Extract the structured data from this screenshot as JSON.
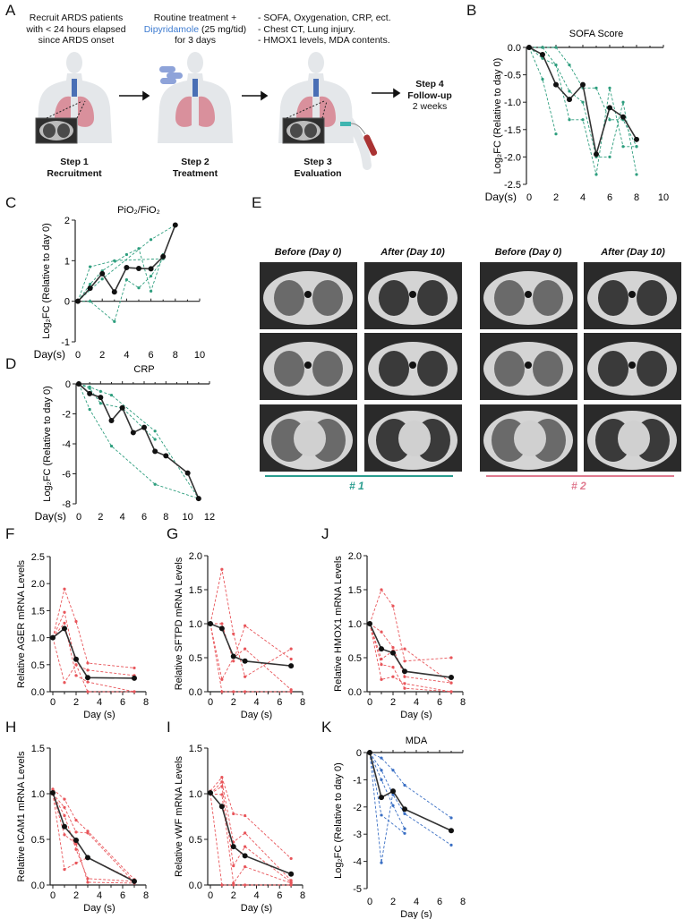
{
  "panel_labels": {
    "A": "A",
    "B": "B",
    "C": "C",
    "D": "D",
    "E": "E",
    "F": "F",
    "G": "G",
    "H": "H",
    "I": "I",
    "J": "J",
    "K": "K"
  },
  "panel_a": {
    "step1_desc": [
      "Recruit ARDS patients",
      "with < 24 hours elapsed",
      "since ARDS onset"
    ],
    "step2_desc_line1": "Routine treatment +",
    "step2_drug": "Dipyridamole",
    "step2_dose": " (25 mg/tid)",
    "step2_desc_line3": "for 3 days",
    "step3_desc": [
      "- SOFA, Oxygenation, CRP, ect.",
      "- Chest CT, Lung injury.",
      "- HMOX1 levels, MDA contents."
    ],
    "step1": {
      "title": "Step 1",
      "name": "Recruitment"
    },
    "step2": {
      "title": "Step 2",
      "name": "Treatment"
    },
    "step3": {
      "title": "Step 3",
      "name": "Evaluation"
    },
    "step4": {
      "title": "Step 4",
      "name": "Follow-up",
      "duration": "2 weeks"
    },
    "drug_color": "#3d7bd0"
  },
  "panel_e": {
    "headers": [
      "Before (Day 0)",
      "After (Day 10)",
      "Before (Day 0)",
      "After (Day 10)"
    ],
    "groups": [
      {
        "label": "# 1",
        "color": "#2a9d8f"
      },
      {
        "label": "# 2",
        "color": "#e07a8f"
      }
    ]
  },
  "chart_data": [
    {
      "id": "B",
      "type": "line",
      "title": "SOFA Score",
      "xlabel": "Day(s)",
      "ylabel": "Log₂FC (Relative to day 0)",
      "xlim": [
        0,
        10
      ],
      "ylim": [
        -2.5,
        0
      ],
      "xticks": [
        "0",
        "2",
        "4",
        "6",
        "8",
        "10"
      ],
      "yticks": [
        "0.0",
        "-0.5",
        "-1.0",
        "-1.5",
        "-2.0",
        "-2.5"
      ],
      "individual_color": "#2e9e7e",
      "mean": {
        "x": [
          0,
          1,
          2,
          3,
          4,
          5,
          6,
          7,
          8
        ],
        "y": [
          0,
          -0.13,
          -0.68,
          -0.95,
          -0.68,
          -1.95,
          -1.1,
          -1.27,
          -1.68
        ]
      },
      "individuals": [
        {
          "x": [
            0,
            1,
            2,
            3,
            4,
            5,
            6,
            7,
            8
          ],
          "y": [
            0,
            0,
            0,
            -0.32,
            -0.74,
            -0.74,
            -1.32,
            -1.32,
            -1.81
          ]
        },
        {
          "x": [
            0,
            1,
            2,
            3,
            4,
            5,
            6,
            7,
            8
          ],
          "y": [
            0,
            -0.2,
            -0.32,
            -0.8,
            -1.0,
            -2.0,
            -2.0,
            -1.0,
            -2.32
          ]
        },
        {
          "x": [
            0,
            1,
            2
          ],
          "y": [
            0,
            -0.58,
            -1.58
          ]
        },
        {
          "x": [
            0,
            1,
            2,
            3,
            4,
            5,
            6,
            7,
            8
          ],
          "y": [
            0,
            0,
            -0.32,
            -1.32,
            -1.32,
            -2.32,
            -0.74,
            -1.81,
            -1.81
          ]
        }
      ]
    },
    {
      "id": "C",
      "type": "line",
      "title": "PiO₂/FiO₂",
      "xlabel": "Day(s)",
      "ylabel": "Log₂FC (Relative to day 0)",
      "xlim": [
        0,
        10
      ],
      "ylim": [
        -1,
        2
      ],
      "xticks": [
        "0",
        "2",
        "4",
        "6",
        "8",
        "10"
      ],
      "yticks": [
        "2",
        "1",
        "0",
        "-1"
      ],
      "individual_color": "#2e9e7e",
      "mean": {
        "x": [
          0,
          1,
          2,
          3,
          4,
          5,
          6,
          7,
          8
        ],
        "y": [
          0,
          0.32,
          0.68,
          0.23,
          0.83,
          0.81,
          0.8,
          1.1,
          1.88
        ]
      },
      "individuals": [
        {
          "x": [
            0,
            1,
            3,
            7
          ],
          "y": [
            0,
            0.85,
            1.0,
            1.05
          ]
        },
        {
          "x": [
            0,
            1,
            2,
            4,
            5,
            6,
            7
          ],
          "y": [
            0,
            0.42,
            0.75,
            1.15,
            1.3,
            0.25,
            1.15
          ]
        },
        {
          "x": [
            0,
            1,
            3,
            4,
            5,
            6,
            7
          ],
          "y": [
            0,
            0,
            -0.5,
            0.53,
            0.33,
            0.62,
            1.05
          ]
        },
        {
          "x": [
            0,
            2,
            6,
            8
          ],
          "y": [
            0,
            0.55,
            1.52,
            1.88
          ]
        }
      ]
    },
    {
      "id": "D",
      "type": "line",
      "title": "CRP",
      "xlabel": "Day(s)",
      "ylabel": "Log₂FC (Relative to day 0)",
      "xlim": [
        0,
        12
      ],
      "ylim": [
        -8,
        0
      ],
      "xticks": [
        "0",
        "2",
        "4",
        "6",
        "8",
        "10",
        "12"
      ],
      "yticks": [
        "0",
        "-2",
        "-4",
        "-6",
        "-8"
      ],
      "individual_color": "#2e9e7e",
      "mean": {
        "x": [
          0,
          1,
          2,
          3,
          4,
          5,
          6,
          7,
          8,
          10,
          11
        ],
        "y": [
          0,
          -0.65,
          -0.9,
          -2.45,
          -1.6,
          -3.25,
          -2.9,
          -4.5,
          -4.8,
          -5.95,
          -7.65
        ]
      },
      "individuals": [
        {
          "x": [
            0,
            1,
            2,
            3,
            7,
            11
          ],
          "y": [
            0,
            -0.2,
            -0.5,
            -0.75,
            -3.15,
            -7.65
          ]
        },
        {
          "x": [
            0,
            1,
            2,
            4,
            7
          ],
          "y": [
            0,
            -0.3,
            -1.3,
            -1.6,
            -3.7
          ]
        },
        {
          "x": [
            0,
            1,
            3,
            7,
            11
          ],
          "y": [
            0,
            -1.7,
            -4.15,
            -6.7,
            -7.65
          ]
        }
      ]
    },
    {
      "id": "F",
      "type": "line",
      "title": "",
      "xlabel": "Day (s)",
      "ylabel": "Relative AGER mRNA Levels",
      "xlim": [
        0,
        8
      ],
      "ylim": [
        0,
        2.5
      ],
      "xticks": [
        "0",
        "2",
        "4",
        "6",
        "8"
      ],
      "yticks": [
        "0.0",
        "0.5",
        "1.0",
        "1.5",
        "2.0",
        "2.5"
      ],
      "individual_color": "#e8555a",
      "mean": {
        "x": [
          0,
          1,
          2,
          3,
          7
        ],
        "y": [
          1.0,
          1.17,
          0.6,
          0.26,
          0.25
        ]
      },
      "individuals": [
        {
          "x": [
            0,
            1,
            2,
            3,
            7
          ],
          "y": [
            1,
            1.9,
            1.3,
            0.53,
            0.44
          ]
        },
        {
          "x": [
            0,
            1,
            2,
            3,
            7
          ],
          "y": [
            1,
            1.47,
            0.5,
            0.4,
            0.3
          ]
        },
        {
          "x": [
            0,
            1,
            2,
            3,
            7
          ],
          "y": [
            1,
            1.27,
            0.3,
            0.18,
            0.0
          ]
        },
        {
          "x": [
            0,
            1,
            2,
            3,
            7
          ],
          "y": [
            1,
            0.17,
            0.5,
            0.0,
            0.0
          ]
        }
      ]
    },
    {
      "id": "G",
      "type": "line",
      "title": "",
      "xlabel": "Day (s)",
      "ylabel": "Relative SFTPD mRNA Levels",
      "xlim": [
        0,
        8
      ],
      "ylim": [
        0,
        2
      ],
      "xticks": [
        "0",
        "2",
        "4",
        "6",
        "8"
      ],
      "yticks": [
        "0.0",
        "0.5",
        "1.0",
        "1.5",
        "2.0"
      ],
      "individual_color": "#e8555a",
      "mean": {
        "x": [
          0,
          1,
          2,
          3,
          7
        ],
        "y": [
          1.0,
          0.93,
          0.52,
          0.45,
          0.38
        ]
      },
      "individuals": [
        {
          "x": [
            0,
            1,
            2,
            3,
            7
          ],
          "y": [
            1,
            1.8,
            0.85,
            0.22,
            0.63
          ]
        },
        {
          "x": [
            0,
            1,
            2,
            3,
            7
          ],
          "y": [
            1,
            1.0,
            0.45,
            0.97,
            0.48
          ]
        },
        {
          "x": [
            0,
            1,
            2,
            3,
            7
          ],
          "y": [
            1,
            0.18,
            0.5,
            0.63,
            0.03
          ]
        },
        {
          "x": [
            0,
            1,
            2,
            3,
            7
          ],
          "y": [
            1,
            0.0,
            0.0,
            0.0,
            0.0
          ]
        }
      ]
    },
    {
      "id": "J",
      "type": "line",
      "title": "",
      "xlabel": "Day (s)",
      "ylabel": "Relative HMOX1 mRNA Levels",
      "xlim": [
        0,
        8
      ],
      "ylim": [
        0,
        2
      ],
      "xticks": [
        "0",
        "2",
        "4",
        "6",
        "8"
      ],
      "yticks": [
        "0.0",
        "0.5",
        "1.0",
        "1.5",
        "2.0"
      ],
      "individual_color": "#e8555a",
      "mean": {
        "x": [
          0,
          1,
          2,
          3,
          7
        ],
        "y": [
          1.0,
          0.63,
          0.57,
          0.3,
          0.21
        ]
      },
      "individuals": [
        {
          "x": [
            0,
            1,
            2,
            3,
            7
          ],
          "y": [
            1,
            1.5,
            1.26,
            0.45,
            0.5
          ]
        },
        {
          "x": [
            0,
            1,
            2,
            3,
            7
          ],
          "y": [
            1,
            0.88,
            0.65,
            0.22,
            0.13
          ]
        },
        {
          "x": [
            0,
            1,
            2,
            3,
            7
          ],
          "y": [
            1,
            0.48,
            0.6,
            0.63,
            0.13
          ]
        },
        {
          "x": [
            0,
            1,
            2,
            3,
            7
          ],
          "y": [
            1,
            0.4,
            0.36,
            0.05,
            0.0
          ]
        },
        {
          "x": [
            0,
            1,
            2,
            3,
            7
          ],
          "y": [
            1,
            0.18,
            0.22,
            0.12,
            0.0
          ]
        }
      ]
    },
    {
      "id": "H",
      "type": "line",
      "title": "",
      "xlabel": "Day (s)",
      "ylabel": "Relative ICAM1 mRNA Levels",
      "xlim": [
        0,
        8
      ],
      "ylim": [
        0,
        1.5
      ],
      "xticks": [
        "0",
        "2",
        "4",
        "6",
        "8"
      ],
      "yticks": [
        "0.0",
        "0.5",
        "1.0",
        "1.5"
      ],
      "individual_color": "#e8555a",
      "mean": {
        "x": [
          0,
          1,
          2,
          3,
          7
        ],
        "y": [
          1.01,
          0.64,
          0.49,
          0.3,
          0.04
        ]
      },
      "individuals": [
        {
          "x": [
            0,
            1,
            2,
            3,
            7
          ],
          "y": [
            1.05,
            0.94,
            0.71,
            0.59,
            0.06
          ]
        },
        {
          "x": [
            0,
            1,
            2,
            3,
            7
          ],
          "y": [
            1,
            0.85,
            0.58,
            0.57,
            0.03
          ]
        },
        {
          "x": [
            0,
            1,
            2,
            3,
            7
          ],
          "y": [
            1,
            0.76,
            0.39,
            0.07,
            0.04
          ]
        },
        {
          "x": [
            0,
            1,
            2,
            3,
            7
          ],
          "y": [
            1,
            0.55,
            0.45,
            0.03,
            0.02
          ]
        },
        {
          "x": [
            0,
            1,
            2,
            3,
            7
          ],
          "y": [
            1,
            0.17,
            0.24,
            0.3,
            0.05
          ]
        }
      ]
    },
    {
      "id": "I",
      "type": "line",
      "title": "",
      "xlabel": "Day (s)",
      "ylabel": "Relative vWF mRNA Levels",
      "xlim": [
        0,
        8
      ],
      "ylim": [
        0,
        1.5
      ],
      "xticks": [
        "0",
        "2",
        "4",
        "6",
        "8"
      ],
      "yticks": [
        "0.0",
        "0.5",
        "1.0",
        "1.5"
      ],
      "individual_color": "#e8555a",
      "mean": {
        "x": [
          0,
          1,
          2,
          3,
          7
        ],
        "y": [
          1.01,
          0.86,
          0.42,
          0.32,
          0.12
        ]
      },
      "individuals": [
        {
          "x": [
            0,
            1,
            2,
            3,
            7
          ],
          "y": [
            1.03,
            1.18,
            0.78,
            0.76,
            0.29
          ]
        },
        {
          "x": [
            0,
            1,
            2,
            3,
            7
          ],
          "y": [
            1,
            1.13,
            0.47,
            0.57,
            0.05
          ]
        },
        {
          "x": [
            0,
            1,
            2,
            3,
            7
          ],
          "y": [
            1,
            1.08,
            0.21,
            0.42,
            0.03
          ]
        },
        {
          "x": [
            0,
            1,
            2,
            3,
            7
          ],
          "y": [
            1,
            0.99,
            0.02,
            0.2,
            0.02
          ]
        },
        {
          "x": [
            0,
            1,
            2,
            3,
            7
          ],
          "y": [
            1,
            0.0,
            0.0,
            0.0,
            0.0
          ]
        }
      ]
    },
    {
      "id": "K",
      "type": "line",
      "title": "MDA",
      "xlabel": "Day (s)",
      "ylabel": "Log₂FC (Relative to day 0)",
      "xlim": [
        0,
        8
      ],
      "ylim": [
        -5,
        0
      ],
      "xticks": [
        "0",
        "2",
        "4",
        "6",
        "8"
      ],
      "yticks": [
        "0",
        "-1",
        "-2",
        "-3",
        "-4",
        "-5"
      ],
      "individual_color": "#3a6fc4",
      "mean": {
        "x": [
          0,
          1,
          2,
          3,
          7
        ],
        "y": [
          0,
          -1.65,
          -1.42,
          -2.08,
          -2.87
        ]
      },
      "individuals": [
        {
          "x": [
            0,
            1,
            2,
            3,
            7
          ],
          "y": [
            0,
            -0.2,
            -0.65,
            -1.2,
            -2.4
          ]
        },
        {
          "x": [
            0,
            1,
            2,
            3,
            7
          ],
          "y": [
            0,
            -0.65,
            -1.55,
            -2.25,
            -3.4
          ]
        },
        {
          "x": [
            0,
            1,
            2,
            3
          ],
          "y": [
            0,
            -1.0,
            -1.95,
            -2.8
          ]
        },
        {
          "x": [
            0,
            1,
            3
          ],
          "y": [
            0,
            -2.3,
            -2.97
          ]
        },
        {
          "x": [
            0,
            1,
            2
          ],
          "y": [
            0,
            -4.05,
            -1.45
          ]
        }
      ]
    }
  ]
}
